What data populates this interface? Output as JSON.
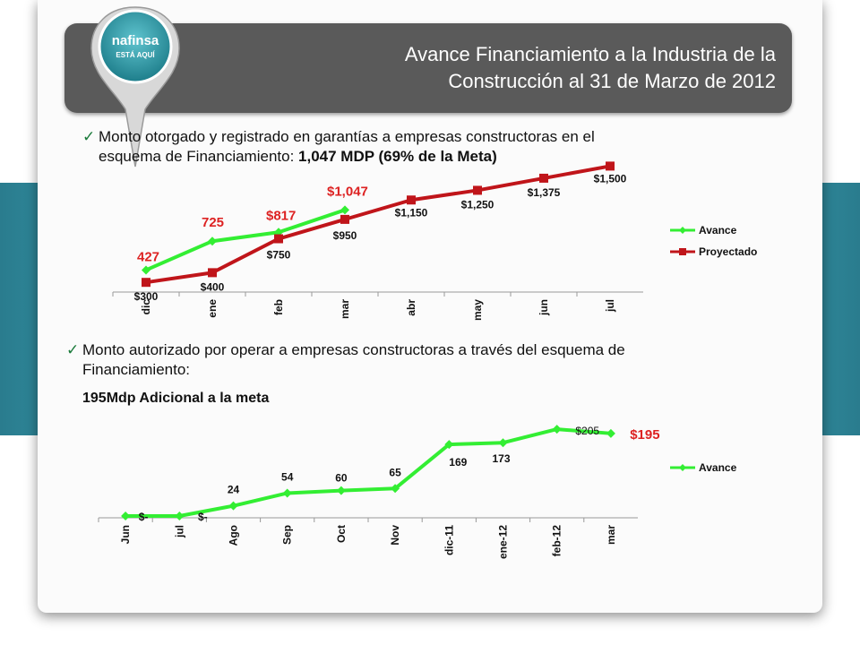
{
  "slide": {
    "title_line1": "Avance Financiamiento a la Industria de la",
    "title_line2": "Construcción al 31 de Marzo de 2012",
    "logo_text1": "nafinsa",
    "logo_text2": "ESTÁ AQUÍ",
    "bullet1_line1": "Monto otorgado y registrado en garantías a empresas constructoras en el",
    "bullet1_line2_prefix": "esquema de Financiamiento: ",
    "bullet1_line2_bold": "1,047 MDP (69% de la Meta)",
    "bullet2_line1": "Monto autorizado por operar a empresas constructoras a través del esquema de",
    "bullet2_line2": "Financiamiento:",
    "subtitle": "195Mdp Adicional a la meta",
    "colors": {
      "avance": "#33ee33",
      "proyectado": "#c0151a",
      "label_red": "#dd2222",
      "teal": "#38a3b3",
      "header": "#5a5a5a"
    }
  },
  "chart_data": [
    {
      "type": "line",
      "categories": [
        "dic",
        "ene",
        "feb",
        "mar",
        "abr",
        "may",
        "jun",
        "jul"
      ],
      "ylim": [
        200,
        1550
      ],
      "legend_position": "right",
      "series": [
        {
          "name": "Avance",
          "values": [
            427,
            725,
            817,
            1047,
            null,
            null,
            null,
            null
          ],
          "labels": [
            "427",
            "725",
            "$817",
            "$1,047",
            "",
            "",
            "",
            ""
          ]
        },
        {
          "name": "Proyectado",
          "values": [
            300,
            400,
            750,
            950,
            1150,
            1250,
            1375,
            1500
          ],
          "labels": [
            "$300",
            "$400",
            "$750",
            "$950",
            "$1,150",
            "$1,250",
            "$1,375",
            "$1,500"
          ]
        }
      ]
    },
    {
      "type": "line",
      "categories": [
        "Jun",
        "jul",
        "Ago",
        "Sep",
        "Oct",
        "Nov",
        "dic-11",
        "ene-12",
        "feb-12",
        "mar"
      ],
      "ylim": [
        0,
        220
      ],
      "legend_position": "right",
      "series": [
        {
          "name": "Avance",
          "values": [
            0,
            0,
            24,
            54,
            60,
            65,
            169,
            173,
            205,
            195
          ],
          "labels": [
            "$-",
            "$-",
            "24",
            "54",
            "60",
            "65",
            "169",
            "173",
            "$205",
            "$195"
          ]
        }
      ]
    }
  ]
}
